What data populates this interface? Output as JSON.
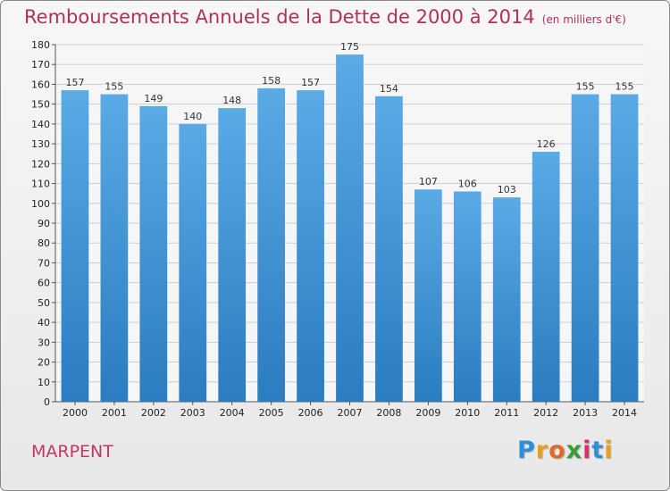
{
  "chart_data": {
    "type": "bar",
    "title": "Remboursements Annuels de la Dette de 2000 à 2014",
    "subtitle": "(en milliers d'€)",
    "categories": [
      "2000",
      "2001",
      "2002",
      "2003",
      "2004",
      "2005",
      "2006",
      "2007",
      "2008",
      "2009",
      "2010",
      "2011",
      "2012",
      "2013",
      "2014"
    ],
    "values": [
      157,
      155,
      149,
      140,
      148,
      158,
      157,
      175,
      154,
      107,
      106,
      103,
      126,
      155,
      155
    ],
    "xlabel": "",
    "ylabel": "",
    "ylim": [
      0,
      180
    ],
    "yticks": [
      0,
      10,
      20,
      30,
      40,
      50,
      60,
      70,
      80,
      90,
      100,
      110,
      120,
      130,
      140,
      150,
      160,
      170,
      180
    ],
    "grid": true,
    "bar_color_top": "#5aaae6",
    "bar_color_bottom": "#2b7cc0"
  },
  "city": "MARPENT",
  "logo": {
    "letters": [
      "P",
      "r",
      "o",
      "x",
      "i",
      "t",
      "i"
    ],
    "colors": [
      "#2f8fd6",
      "#e5a020",
      "#e0682a",
      "#3a9a3a",
      "#d4346a",
      "#2f8fd6",
      "#e5a020"
    ]
  }
}
